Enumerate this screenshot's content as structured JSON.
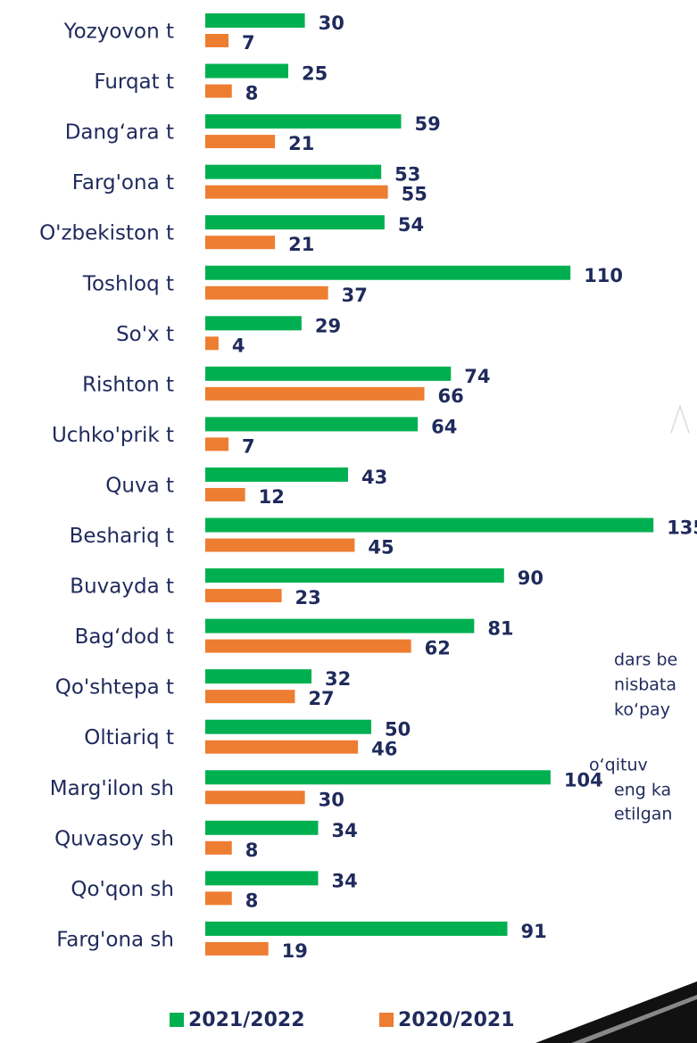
{
  "chart_data": {
    "type": "bar",
    "orientation": "horizontal",
    "categories": [
      "Yozyovon t",
      "Furqat t",
      "Dang‘ara t",
      "Farg'ona t",
      "O'zbekiston t",
      "Toshloq t",
      "So'x t",
      "Rishton t",
      "Uchko'prik t",
      "Quva t",
      "Beshariq t",
      "Buvayda t",
      "Bag‘dod t",
      "Qo'shtepa t",
      "Oltiariq t",
      "Marg'ilon sh",
      "Quvasoy sh",
      "Qo'qon sh",
      "Farg'ona sh"
    ],
    "series": [
      {
        "name": "2021/2022",
        "color": "#00b050",
        "values": [
          30,
          25,
          59,
          53,
          54,
          110,
          29,
          74,
          64,
          43,
          135,
          90,
          81,
          32,
          50,
          104,
          34,
          34,
          91
        ]
      },
      {
        "name": "2020/2021",
        "color": "#ed7d31",
        "values": [
          7,
          8,
          21,
          55,
          21,
          37,
          4,
          66,
          7,
          12,
          45,
          23,
          62,
          27,
          46,
          30,
          8,
          8,
          19
        ]
      }
    ],
    "legend": "bottom",
    "annotations": [
      "dars be",
      "nisbata",
      "ko‘pay",
      "o‘qituv",
      "eng ka",
      "etilgan"
    ]
  }
}
